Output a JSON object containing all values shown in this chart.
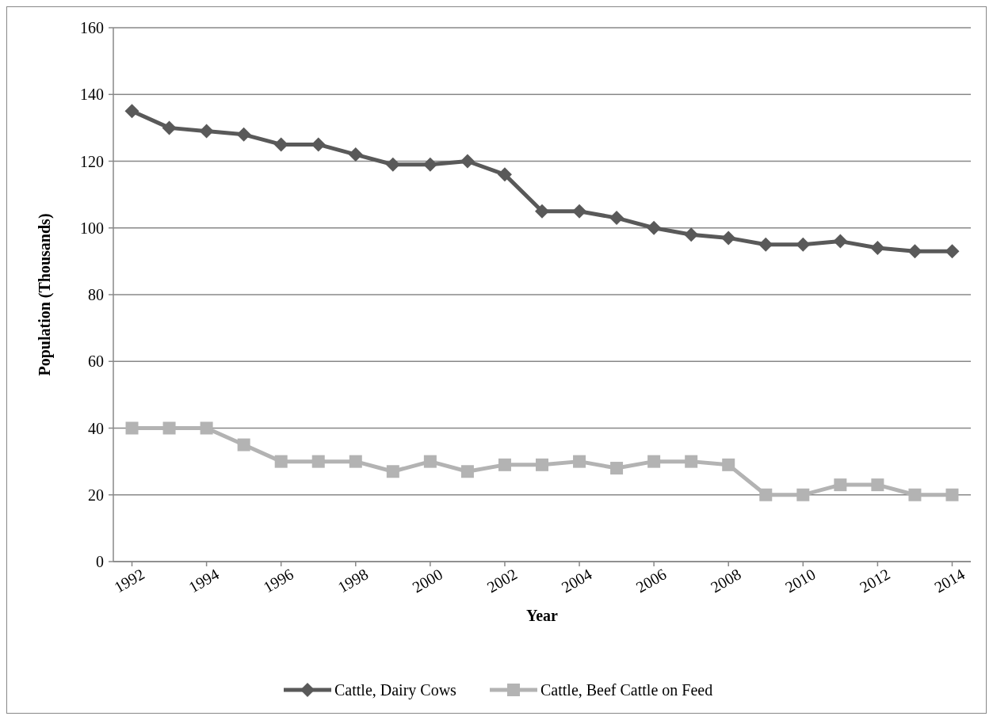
{
  "chart_data": {
    "type": "line",
    "xlabel": "Year",
    "ylabel": "Population (Thousands)",
    "x": [
      1992,
      1993,
      1994,
      1995,
      1996,
      1997,
      1998,
      1999,
      2000,
      2001,
      2002,
      2003,
      2004,
      2005,
      2006,
      2007,
      2008,
      2009,
      2010,
      2011,
      2012,
      2013,
      2014
    ],
    "series": [
      {
        "name": "Cattle, Dairy Cows",
        "color": "#595959",
        "marker": "diamond",
        "values": [
          135,
          130,
          129,
          128,
          125,
          125,
          122,
          119,
          119,
          120,
          116,
          105,
          105,
          103,
          100,
          98,
          97,
          95,
          95,
          96,
          94,
          93,
          93
        ]
      },
      {
        "name": "Cattle, Beef Cattle on Feed",
        "color": "#b3b3b3",
        "marker": "square",
        "values": [
          40,
          40,
          40,
          35,
          30,
          30,
          30,
          27,
          30,
          27,
          29,
          29,
          30,
          28,
          30,
          30,
          29,
          20,
          20,
          23,
          23,
          20,
          20
        ]
      }
    ],
    "xlim": [
      1991.5,
      2014.5
    ],
    "xticks": [
      1992,
      1994,
      1996,
      1998,
      2000,
      2002,
      2004,
      2006,
      2008,
      2010,
      2012,
      2014
    ],
    "ylim": [
      0,
      160
    ],
    "yticks": [
      0,
      20,
      40,
      60,
      80,
      100,
      120,
      140,
      160
    ],
    "grid": "y",
    "legend": "bottom",
    "line_style": "solid"
  }
}
